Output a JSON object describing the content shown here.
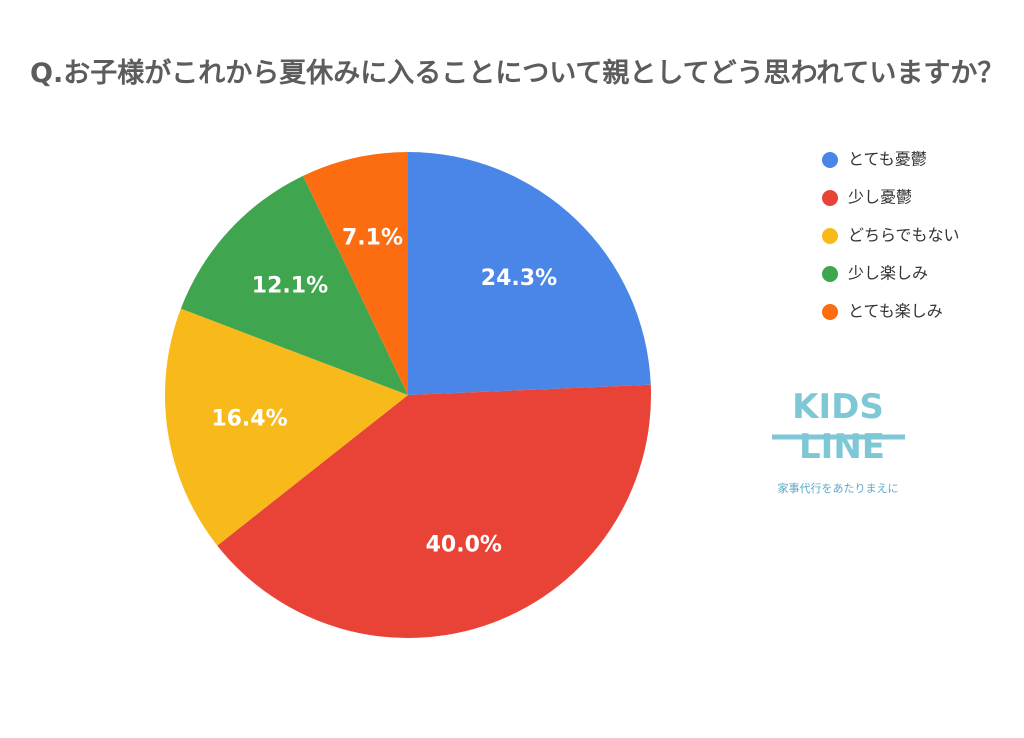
{
  "chart_data": {
    "type": "pie",
    "title": "Q.お子様がこれから夏休みに入ることについて親としてどう思われていますか？",
    "categories": [
      "とても憂鬱",
      "少し憂鬱",
      "どちらでもない",
      "少し楽しみ",
      "とても楽しみ"
    ],
    "values": [
      24.3,
      40.0,
      16.4,
      12.1,
      7.1
    ],
    "value_labels": [
      "24.3%",
      "40.0%",
      "16.4%",
      "12.1%",
      "7.1%"
    ],
    "colors": [
      "#4a86e8",
      "#e84336",
      "#f8b91b",
      "#3fa64f",
      "#fb6d10"
    ],
    "legend": "top-right"
  },
  "logo": {
    "line1": "KIDS",
    "line2": "LINE",
    "tagline": "家事代行をあたりまえに"
  }
}
